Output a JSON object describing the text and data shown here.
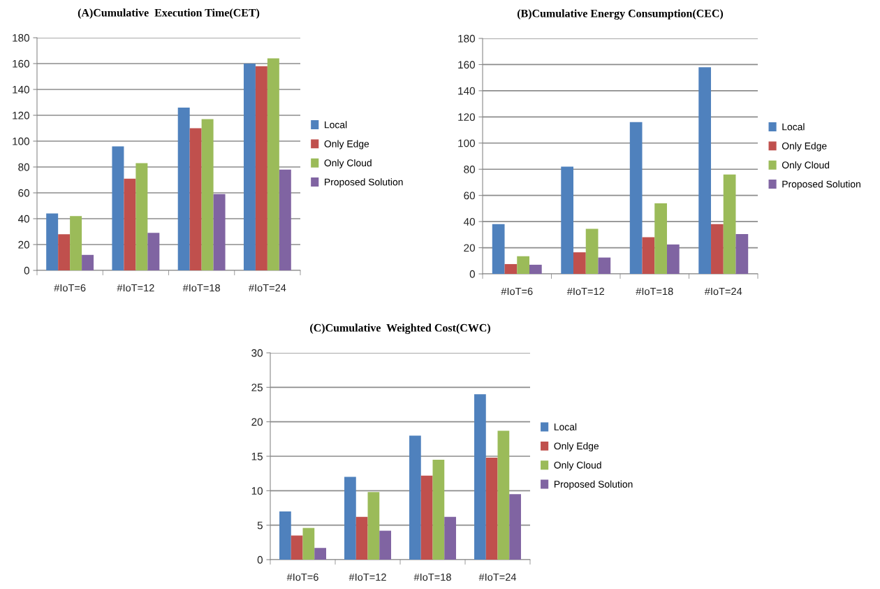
{
  "chart_data": [
    {
      "type": "bar",
      "title": "(A)Cumulative  Execution Time(CET)",
      "categories": [
        "#IoT=6",
        "#IoT=12",
        "#IoT=18",
        "#IoT=24"
      ],
      "series": [
        {
          "name": "Local",
          "color": "#4f81bd",
          "values": [
            44,
            96,
            126,
            160
          ]
        },
        {
          "name": "Only Edge",
          "color": "#c0504d",
          "values": [
            28,
            71,
            110,
            158
          ]
        },
        {
          "name": "Only Cloud",
          "color": "#9bbb59",
          "values": [
            42,
            83,
            117,
            164
          ]
        },
        {
          "name": "Proposed Solution",
          "color": "#8064a2",
          "values": [
            12,
            29,
            59,
            78
          ]
        }
      ],
      "ylim": [
        0,
        180
      ],
      "yticks": [
        0,
        20,
        40,
        60,
        80,
        100,
        120,
        140,
        160,
        180
      ],
      "grid": "y",
      "legend": "right"
    },
    {
      "type": "bar",
      "title": "(B)Cumulative Energy Consumption(CEC)",
      "categories": [
        "#IoT=6",
        "#IoT=12",
        "#IoT=18",
        "#IoT=24"
      ],
      "series": [
        {
          "name": "Local",
          "color": "#4f81bd",
          "values": [
            38,
            82,
            116,
            158
          ]
        },
        {
          "name": "Only Edge",
          "color": "#c0504d",
          "values": [
            7.5,
            16.5,
            28,
            38
          ]
        },
        {
          "name": "Only Cloud",
          "color": "#9bbb59",
          "values": [
            13.5,
            34.5,
            54,
            76
          ]
        },
        {
          "name": "Proposed Solution",
          "color": "#8064a2",
          "values": [
            7,
            12.5,
            22.5,
            30.5
          ]
        }
      ],
      "ylim": [
        0,
        180
      ],
      "yticks": [
        0,
        20,
        40,
        60,
        80,
        100,
        120,
        140,
        160,
        180
      ],
      "grid": "y",
      "legend": "right"
    },
    {
      "type": "bar",
      "title": "(C)Cumulative  Weighted Cost(CWC)",
      "categories": [
        "#IoT=6",
        "#IoT=12",
        "#IoT=18",
        "#IoT=24"
      ],
      "series": [
        {
          "name": "Local",
          "color": "#4f81bd",
          "values": [
            7,
            12,
            18,
            24
          ]
        },
        {
          "name": "Only Edge",
          "color": "#c0504d",
          "values": [
            3.5,
            6.2,
            12.2,
            14.8
          ]
        },
        {
          "name": "Only Cloud",
          "color": "#9bbb59",
          "values": [
            4.6,
            9.8,
            14.5,
            18.7
          ]
        },
        {
          "name": "Proposed Solution",
          "color": "#8064a2",
          "values": [
            1.7,
            4.2,
            6.2,
            9.5
          ]
        }
      ],
      "ylim": [
        0,
        30
      ],
      "yticks": [
        0,
        5,
        10,
        15,
        20,
        25,
        30
      ],
      "grid": "y",
      "legend": "right"
    }
  ]
}
